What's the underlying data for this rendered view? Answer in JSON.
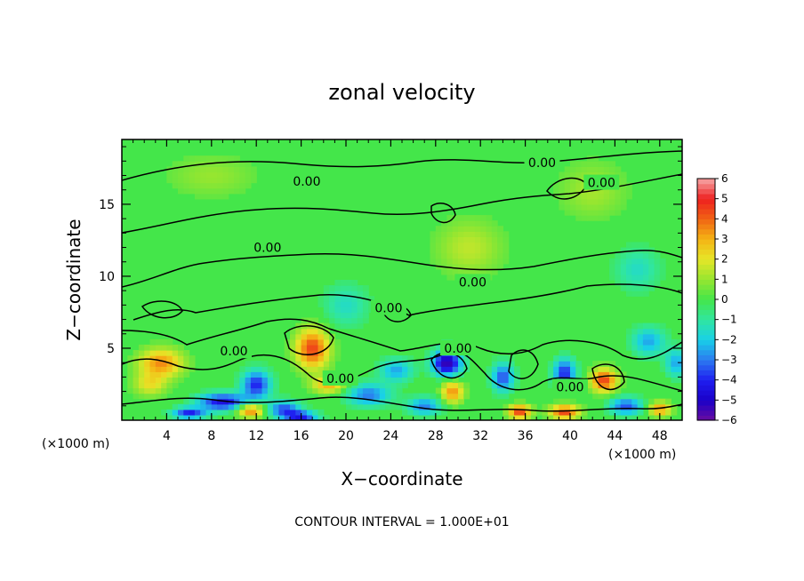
{
  "chart_data": {
    "type": "heatmap",
    "title": "zonal velocity",
    "xlabel": "X−coordinate",
    "ylabel": "Z−coordinate",
    "x_unit": "(×1000 m)",
    "x_unit_right": "(×1000 m)",
    "xlim": [
      0,
      50
    ],
    "ylim": [
      0,
      19.5
    ],
    "x_ticks": [
      4,
      8,
      12,
      16,
      20,
      24,
      28,
      32,
      36,
      40,
      44,
      48
    ],
    "y_ticks": [
      5,
      10,
      15
    ],
    "colorbar": {
      "range": [
        -6,
        6
      ],
      "ticks": [
        6,
        5,
        4,
        3,
        2,
        1,
        0,
        -1,
        -2,
        -3,
        -4,
        -5,
        -6
      ],
      "tick_labels": [
        "6",
        "5",
        "4",
        "3",
        "2",
        "1",
        "0",
        "−1",
        "−2",
        "−3",
        "−4",
        "−5",
        "−6"
      ]
    },
    "contour_level_label": "0.00",
    "contour_labels": [
      {
        "text": "0.00",
        "x": 37.5,
        "z": 17.9
      },
      {
        "text": "0.00",
        "x": 16.5,
        "z": 16.6
      },
      {
        "text": "0.00",
        "x": 42.8,
        "z": 16.5
      },
      {
        "text": "0.00",
        "x": 13.0,
        "z": 12.0
      },
      {
        "text": "0.00",
        "x": 31.3,
        "z": 9.6
      },
      {
        "text": "0.00",
        "x": 23.8,
        "z": 7.8
      },
      {
        "text": "0.00",
        "x": 30.0,
        "z": 5.0
      },
      {
        "text": "0.00",
        "x": 10.0,
        "z": 4.8
      },
      {
        "text": "0.00",
        "x": 19.5,
        "z": 2.9
      },
      {
        "text": "0.00",
        "x": 40.0,
        "z": 2.3
      }
    ],
    "features": [
      {
        "x": 3.5,
        "z": 4.0,
        "v": 3.5,
        "sx": 2.0,
        "sz": 1.0
      },
      {
        "x": 2.5,
        "z": 2.5,
        "v": 2.0,
        "sx": 1.5,
        "sz": 0.8
      },
      {
        "x": 9.0,
        "z": 1.3,
        "v": -4.5,
        "sx": 2.2,
        "sz": 0.6
      },
      {
        "x": 12.0,
        "z": 2.5,
        "v": -4.0,
        "sx": 1.3,
        "sz": 1.0
      },
      {
        "x": 14.5,
        "z": 0.8,
        "v": -3.5,
        "sx": 1.5,
        "sz": 0.6
      },
      {
        "x": 11.5,
        "z": 0.7,
        "v": 4.0,
        "sx": 1.2,
        "sz": 0.5
      },
      {
        "x": 17.0,
        "z": 5.0,
        "v": 4.5,
        "sx": 1.5,
        "sz": 1.4
      },
      {
        "x": 18.5,
        "z": 2.5,
        "v": 3.0,
        "sx": 1.5,
        "sz": 0.6
      },
      {
        "x": 22.0,
        "z": 1.8,
        "v": -3.0,
        "sx": 2.0,
        "sz": 0.8
      },
      {
        "x": 24.5,
        "z": 3.5,
        "v": -2.5,
        "sx": 1.5,
        "sz": 0.8
      },
      {
        "x": 29.0,
        "z": 4.0,
        "v": -5.5,
        "sx": 1.3,
        "sz": 0.9
      },
      {
        "x": 29.5,
        "z": 2.0,
        "v": 3.5,
        "sx": 1.0,
        "sz": 0.8
      },
      {
        "x": 27.0,
        "z": 1.0,
        "v": -3.0,
        "sx": 1.5,
        "sz": 0.6
      },
      {
        "x": 34.0,
        "z": 3.0,
        "v": -3.5,
        "sx": 1.0,
        "sz": 1.0
      },
      {
        "x": 35.5,
        "z": 0.6,
        "v": 4.5,
        "sx": 1.0,
        "sz": 0.5
      },
      {
        "x": 39.5,
        "z": 3.3,
        "v": -4.0,
        "sx": 1.0,
        "sz": 1.0
      },
      {
        "x": 39.5,
        "z": 0.6,
        "v": 4.5,
        "sx": 1.3,
        "sz": 0.5
      },
      {
        "x": 43.0,
        "z": 2.8,
        "v": 4.5,
        "sx": 1.2,
        "sz": 0.8
      },
      {
        "x": 45.0,
        "z": 1.0,
        "v": -3.5,
        "sx": 1.5,
        "sz": 0.6
      },
      {
        "x": 47.0,
        "z": 5.5,
        "v": -2.5,
        "sx": 1.5,
        "sz": 1.0
      },
      {
        "x": 48.0,
        "z": 0.8,
        "v": 3.5,
        "sx": 1.0,
        "sz": 0.5
      },
      {
        "x": 49.5,
        "z": 4.0,
        "v": -2.5,
        "sx": 1.0,
        "sz": 1.0
      },
      {
        "x": 6.0,
        "z": 0.5,
        "v": -4.0,
        "sx": 1.5,
        "sz": 0.4
      },
      {
        "x": 16.0,
        "z": 0.3,
        "v": -4.5,
        "sx": 1.5,
        "sz": 0.3
      },
      {
        "x": 20.0,
        "z": 8.0,
        "v": -1.5,
        "sx": 2.0,
        "sz": 1.5
      },
      {
        "x": 31.0,
        "z": 12.0,
        "v": 1.5,
        "sx": 3.0,
        "sz": 2.0
      },
      {
        "x": 42.0,
        "z": 16.0,
        "v": 1.2,
        "sx": 3.0,
        "sz": 2.0
      },
      {
        "x": 8.0,
        "z": 17.0,
        "v": 1.0,
        "sx": 4.0,
        "sz": 1.5
      },
      {
        "x": 46.0,
        "z": 10.5,
        "v": -1.5,
        "sx": 2.0,
        "sz": 1.5
      }
    ]
  },
  "annotation": {
    "contour_interval": "CONTOUR INTERVAL = 1.000E+01"
  }
}
